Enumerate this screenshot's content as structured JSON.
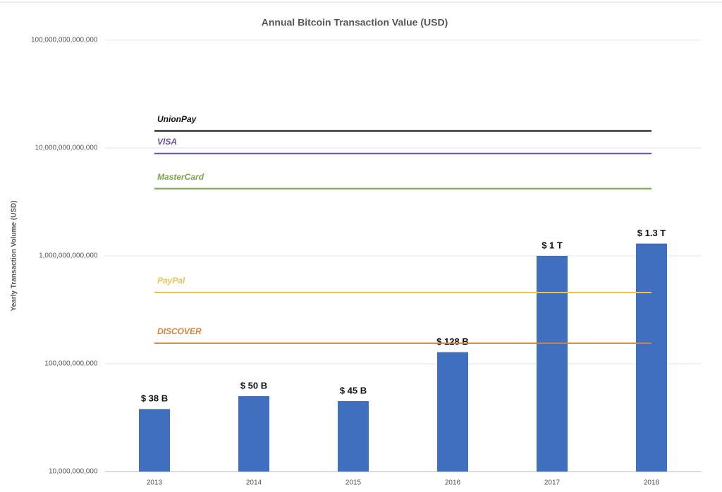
{
  "chart_data": {
    "type": "bar",
    "title": "Annual Bitcoin Transaction Value (USD)",
    "y_label": "Yearly Transaction Volume (USD)",
    "categories": [
      "2013",
      "2014",
      "2015",
      "2016",
      "2017",
      "2018"
    ],
    "values": [
      38000000000,
      50000000000,
      45000000000,
      128000000000,
      1000000000000,
      1300000000000
    ],
    "value_labels": [
      "$ 38 B",
      "$ 50 B",
      "$ 45 B",
      "$ 128 B",
      "$ 1 T",
      "$ 1.3 T"
    ],
    "color": "#3f6fbe",
    "reference_lines": [
      {
        "name": "UnionPay",
        "color": "#111111",
        "value": 14400000000000
      },
      {
        "name": "VISA",
        "color": "#6a4fa0",
        "value": 8900000000000
      },
      {
        "name": "MasterCard",
        "color": "#7aa84a",
        "value": 4200000000000
      },
      {
        "name": "PayPal",
        "color": "#e8c25a",
        "value": 457000000000
      },
      {
        "name": "DISCOVER",
        "color": "#d9823a",
        "value": 155000000000
      }
    ],
    "log_scale": true,
    "ylim": [
      10000000000,
      100000000000000
    ],
    "yticks": [
      {
        "value": 10000000000,
        "label": "10,000,000,000"
      },
      {
        "value": 100000000000,
        "label": "100,000,000,000"
      },
      {
        "value": 1000000000000,
        "label": "1,000,000,000,000"
      },
      {
        "value": 10000000000000,
        "label": "10,000,000,000,000"
      },
      {
        "value": 100000000000000,
        "label": "100,000,000,000,000"
      }
    ],
    "grid": true
  }
}
